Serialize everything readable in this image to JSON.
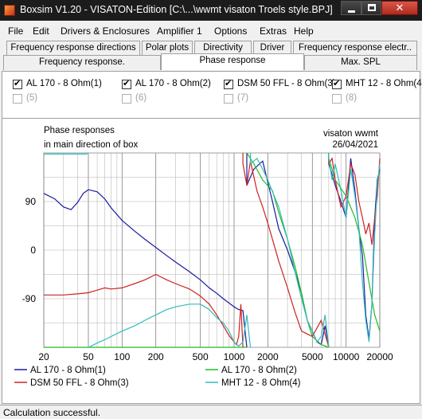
{
  "window": {
    "title": "Boxsim V1.20 - VISATON-Edition [C:\\...\\wwmt visaton Troels style.BPJ]",
    "close_glyph": "✕"
  },
  "menu": [
    "File",
    "Edit",
    "Drivers & Enclosures",
    "Amplifier 1",
    "Options",
    "Extras",
    "Help"
  ],
  "tabs_row1": [
    "Frequency response directions",
    "Polar plots",
    "Directivity",
    "Driver",
    "Frequency response electr.."
  ],
  "tabs_row2": [
    "Frequency response.",
    "Phase response",
    "Max. SPL"
  ],
  "active_tab": "Phase response",
  "drivers": [
    {
      "label": "AL 170 - 8 Ohm(1)",
      "checked": true,
      "enabled": true
    },
    {
      "label": "AL 170 - 8 Ohm(2)",
      "checked": true,
      "enabled": true
    },
    {
      "label": "DSM 50 FFL - 8 Ohm(3)",
      "checked": true,
      "enabled": true
    },
    {
      "label": "MHT 12 - 8 Ohm(4)",
      "checked": true,
      "enabled": true
    },
    {
      "label": "(5)",
      "checked": false,
      "enabled": false
    },
    {
      "label": "(6)",
      "checked": false,
      "enabled": false
    },
    {
      "label": "(7)",
      "checked": false,
      "enabled": false
    },
    {
      "label": "(8)",
      "checked": false,
      "enabled": false
    }
  ],
  "chart_data": {
    "type": "line",
    "title_line1": "Phase responses",
    "title_line2": "in main direction of box",
    "project": "visaton wwmt",
    "date": "26/04/2021",
    "x_scale": "log",
    "xlim": [
      20,
      20000
    ],
    "ylim": [
      -180,
      180
    ],
    "grid": true,
    "x_ticks": [
      "20",
      "50",
      "100",
      "200",
      "500",
      "1000",
      "2000",
      "5000",
      "10000",
      "20000"
    ],
    "y_ticks": [
      "90",
      "0",
      "-90"
    ],
    "legend_placement": "bottom",
    "series": [
      {
        "name": "AL 170 - 8 Ohm(1)",
        "color": "#1a1aa0",
        "x": [
          20,
          25,
          30,
          35,
          40,
          45,
          50,
          60,
          70,
          80,
          100,
          130,
          160,
          200,
          250,
          300,
          400,
          500,
          600,
          700,
          800,
          900,
          1000,
          1100,
          1200,
          1300,
          1500,
          1800,
          2200,
          2500,
          3000,
          3500,
          4000,
          4500,
          5000,
          5500,
          6000,
          6500,
          7000,
          7500,
          8000,
          9000,
          10000,
          11000,
          12000,
          13000,
          14000,
          15000,
          16000,
          17000,
          18000,
          19000,
          20000
        ],
        "y": [
          105,
          95,
          80,
          75,
          88,
          105,
          112,
          108,
          95,
          78,
          55,
          35,
          20,
          5,
          -10,
          -22,
          -40,
          -55,
          -70,
          -80,
          -90,
          -98,
          -105,
          -110,
          -112,
          120,
          150,
          165,
          90,
          40,
          0,
          -40,
          -80,
          -130,
          -150,
          -170,
          -175,
          -140,
          160,
          140,
          120,
          90,
          60,
          170,
          110,
          40,
          -10,
          -120,
          -165,
          -100,
          60,
          130,
          150
        ]
      },
      {
        "name": "AL 170 - 8 Ohm(2)",
        "color": "#22bb22",
        "x": [
          20,
          30,
          50,
          70,
          100,
          150,
          200,
          300,
          400,
          500,
          600,
          700,
          800,
          900,
          1000,
          1100,
          1200,
          1300,
          1500,
          1800,
          2200,
          2500,
          3000,
          3500,
          4000,
          4500,
          5000,
          6000,
          7000,
          8000,
          10000,
          12000,
          14000,
          16000,
          18000,
          20000
        ],
        "y": [
          -180,
          -180,
          -180,
          -180,
          -180,
          -180,
          -180,
          -180,
          -180,
          -180,
          -180,
          -180,
          -180,
          -180,
          -180,
          -180,
          -180,
          180,
          160,
          130,
          110,
          70,
          20,
          -30,
          -80,
          -130,
          -160,
          -175,
          170,
          130,
          100,
          60,
          10,
          -60,
          -120,
          -150
        ]
      },
      {
        "name": "DSM 50 FFL - 8 Ohm(3)",
        "color": "#cc2222",
        "x": [
          20,
          30,
          40,
          50,
          60,
          70,
          80,
          100,
          130,
          160,
          200,
          250,
          300,
          400,
          500,
          600,
          700,
          800,
          900,
          1000,
          1050,
          1100,
          1150,
          1200,
          1300,
          1400,
          1600,
          1800,
          2000,
          2200,
          2500,
          3000,
          3500,
          4000,
          5000,
          6000,
          7000,
          7500,
          8000,
          9000,
          10000,
          11000,
          12000,
          13000,
          14000,
          15000,
          16000,
          17000,
          18000,
          19000,
          20000
        ],
        "y": [
          -83,
          -83,
          -81,
          -79,
          -74,
          -70,
          -72,
          -70,
          -62,
          -55,
          -45,
          -55,
          -62,
          -72,
          -85,
          -100,
          -120,
          -140,
          -158,
          -170,
          -175,
          -160,
          -100,
          160,
          120,
          165,
          110,
          80,
          50,
          20,
          -20,
          -70,
          -115,
          -150,
          -160,
          -130,
          160,
          170,
          130,
          80,
          100,
          160,
          140,
          90,
          60,
          30,
          50,
          10,
          60,
          100,
          170
        ]
      },
      {
        "name": "MHT 12 - 8 Ohm(4)",
        "color": "#33bbbb",
        "x": [
          20,
          30,
          40,
          45,
          48,
          50,
          55,
          60,
          70,
          80,
          100,
          130,
          160,
          200,
          250,
          300,
          400,
          500,
          600,
          700,
          800,
          900,
          1000,
          1100,
          1200,
          1300,
          1400,
          1500,
          1600,
          1800,
          2000,
          2500,
          3000,
          3500,
          4000,
          4500,
          5000,
          5500,
          6000,
          6500,
          7000,
          7500,
          8000,
          9000,
          10000,
          11000,
          12000,
          13000,
          14000,
          15000,
          16000,
          17000,
          18000,
          19000,
          20000
        ],
        "y": [
          178,
          178,
          178,
          178,
          178,
          -180,
          -176,
          -172,
          -166,
          -160,
          -150,
          -140,
          -130,
          -120,
          -110,
          -105,
          -100,
          -100,
          -110,
          -125,
          -135,
          -150,
          -170,
          -178,
          -170,
          -120,
          160,
          165,
          170,
          150,
          130,
          80,
          20,
          -40,
          -90,
          -130,
          -150,
          -170,
          -160,
          -120,
          170,
          130,
          160,
          110,
          60,
          150,
          100,
          40,
          -60,
          -130,
          -170,
          -100,
          30,
          120,
          160
        ]
      }
    ]
  },
  "status": "Calculation successful."
}
